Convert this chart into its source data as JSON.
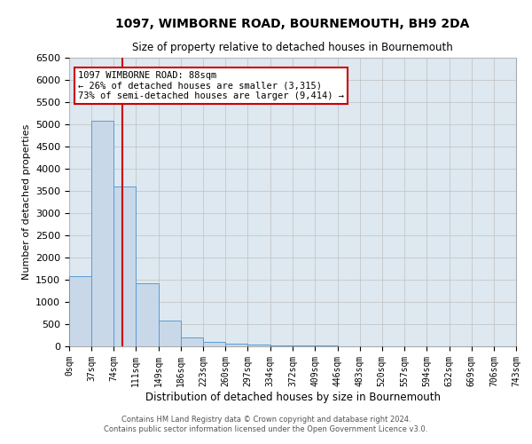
{
  "title": "1097, WIMBORNE ROAD, BOURNEMOUTH, BH9 2DA",
  "subtitle": "Size of property relative to detached houses in Bournemouth",
  "xlabel": "Distribution of detached houses by size in Bournemouth",
  "ylabel": "Number of detached properties",
  "footnote1": "Contains HM Land Registry data © Crown copyright and database right 2024.",
  "footnote2": "Contains public sector information licensed under the Open Government Licence v3.0.",
  "bin_edges": [
    0,
    37,
    74,
    111,
    149,
    186,
    223,
    260,
    297,
    334,
    372,
    409,
    446,
    483,
    520,
    557,
    594,
    632,
    669,
    706,
    743
  ],
  "bar_values": [
    1590,
    5080,
    3600,
    1430,
    590,
    210,
    100,
    60,
    35,
    25,
    20,
    15,
    10,
    8,
    6,
    5,
    4,
    3,
    2,
    2
  ],
  "bar_color": "#c8d8e8",
  "bar_edge_color": "#5b9bd5",
  "grid_color": "#c0c0c0",
  "property_size": 88,
  "red_line_color": "#cc0000",
  "annotation_line1": "1097 WIMBORNE ROAD: 88sqm",
  "annotation_line2": "← 26% of detached houses are smaller (3,315)",
  "annotation_line3": "73% of semi-detached houses are larger (9,414) →",
  "annotation_box_color": "#ffffff",
  "annotation_box_edge": "#cc0000",
  "ylim": [
    0,
    6500
  ],
  "yticks": [
    0,
    500,
    1000,
    1500,
    2000,
    2500,
    3000,
    3500,
    4000,
    4500,
    5000,
    5500,
    6000,
    6500
  ],
  "background_color": "#dde8f0"
}
